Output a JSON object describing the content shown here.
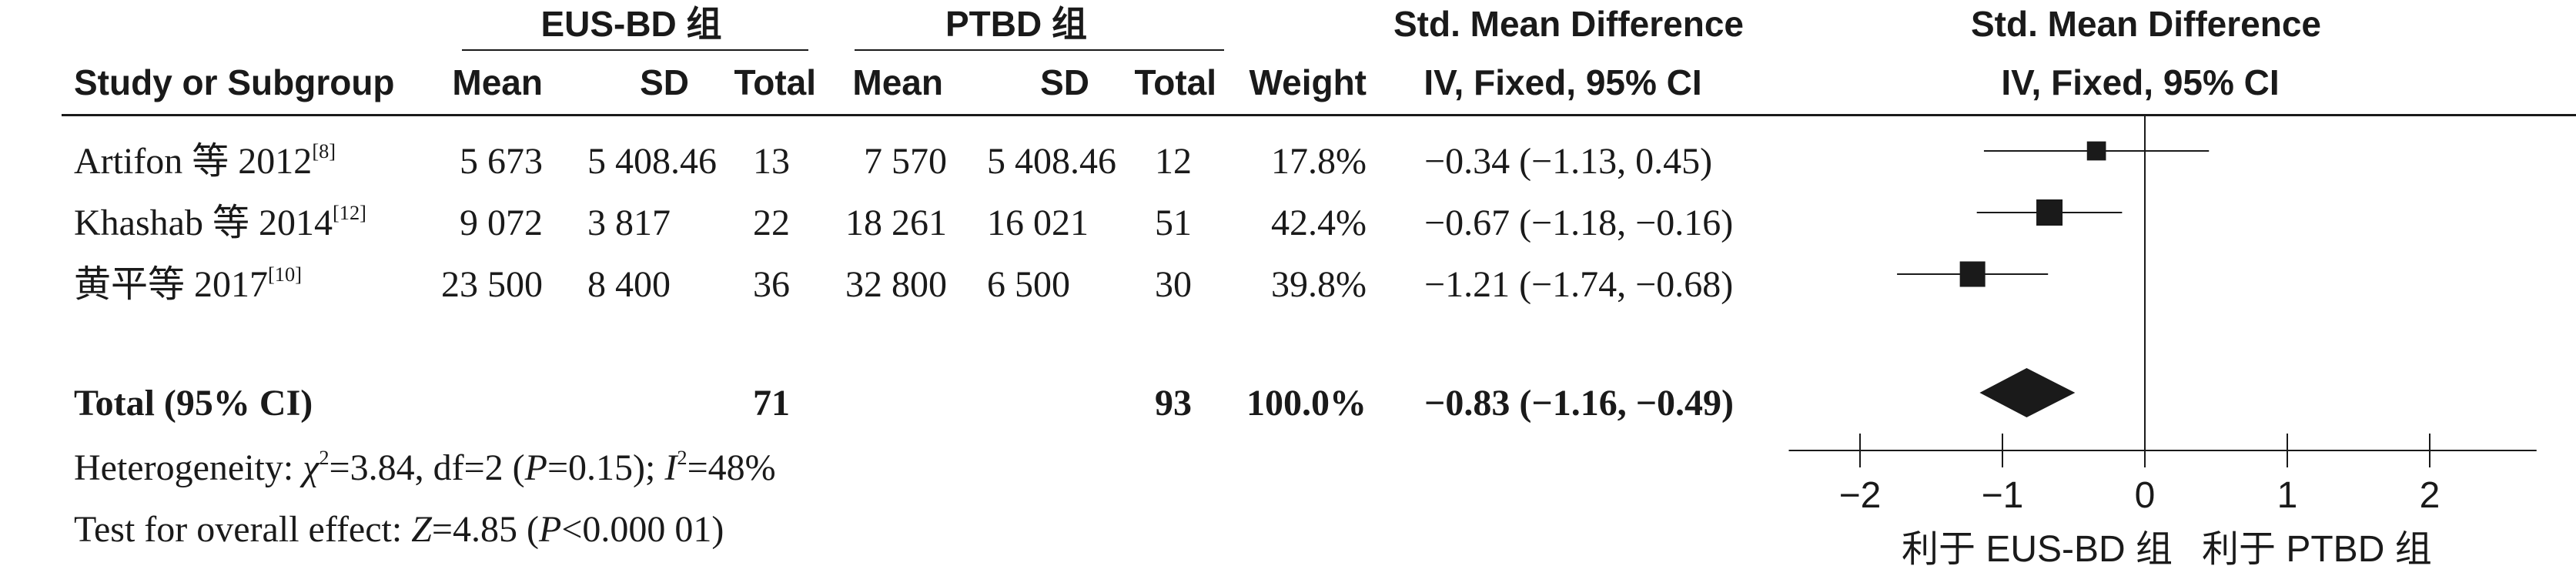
{
  "header": {
    "group1": "EUS-BD 组",
    "group2": "PTBD 组",
    "smd_title": "Std. Mean Difference",
    "smd_title_plot": "Std. Mean Difference",
    "col_study": "Study or Subgroup",
    "col_mean1": "Mean",
    "col_sd1": "SD",
    "col_total1": "Total",
    "col_mean2": "Mean",
    "col_sd2": "SD",
    "col_total2": "Total",
    "col_weight": "Weight",
    "col_method": "IV, Fixed, 95% CI",
    "col_method_plot": "IV, Fixed, 95% CI"
  },
  "studies": [
    {
      "name": "Artifon 等 2012",
      "ref": "[8]",
      "mean1": "5 673",
      "sd1": "5 408.46",
      "total1": "13",
      "mean2": "7 570",
      "sd2": "5 408.46",
      "total2": "12",
      "weight": "17.8%",
      "ci_text": "−0.34 (−1.13, 0.45)"
    },
    {
      "name": "Khashab 等 2014",
      "ref": "[12]",
      "mean1": "9 072",
      "sd1": "3 817",
      "total1": "22",
      "mean2": "18 261",
      "sd2": "16 021",
      "total2": "51",
      "weight": "42.4%",
      "ci_text": "−0.67 (−1.18, −0.16)"
    },
    {
      "name": "黄平等 2017",
      "ref": "[10]",
      "mean1": "23 500",
      "sd1": "8 400",
      "total1": "36",
      "mean2": "32 800",
      "sd2": "6 500",
      "total2": "30",
      "weight": "39.8%",
      "ci_text": "−1.21 (−1.74, −0.68)"
    }
  ],
  "total": {
    "label": "Total (95% CI)",
    "total1": "71",
    "total2": "93",
    "weight": "100.0%",
    "ci_text": "−0.83 (−1.16, −0.49)"
  },
  "footer": {
    "heterogeneity_prefix": "Heterogeneity: ",
    "chi": "χ",
    "chi_sup": "2",
    "het_mid": "=3.84, df=2 (",
    "p1": "P",
    "het_p": "=0.15); ",
    "i": "I",
    "i_sup": "2",
    "het_end": "=48%",
    "overall_prefix": "Test for overall effect: ",
    "z": "Z",
    "z_mid": "=4.85 (",
    "p2": "P",
    "overall_end": "<0.000 01)"
  },
  "axis": {
    "favours_left": "利于 EUS-BD 组",
    "favours_right": "利于 PTBD 组"
  },
  "chart_data": {
    "type": "forest",
    "xlim": [
      -2.5,
      2.75
    ],
    "xticks": [
      -2,
      -1,
      0,
      1,
      2
    ],
    "xtick_labels": [
      "−2",
      "−1",
      "0",
      "1",
      "2"
    ],
    "null_line": 0,
    "studies": [
      {
        "name": "Artifon 等 2012",
        "smd": -0.34,
        "lower": -1.13,
        "upper": 0.45,
        "weight": 17.8
      },
      {
        "name": "Khashab 等 2014",
        "smd": -0.67,
        "lower": -1.18,
        "upper": -0.16,
        "weight": 42.4
      },
      {
        "name": "黄平等 2017",
        "smd": -1.21,
        "lower": -1.74,
        "upper": -0.68,
        "weight": 39.8
      }
    ],
    "pooled": {
      "smd": -0.83,
      "lower": -1.16,
      "upper": -0.49
    },
    "colors": {
      "mark": "#1a1a1a",
      "line": "#1a1a1a"
    }
  }
}
